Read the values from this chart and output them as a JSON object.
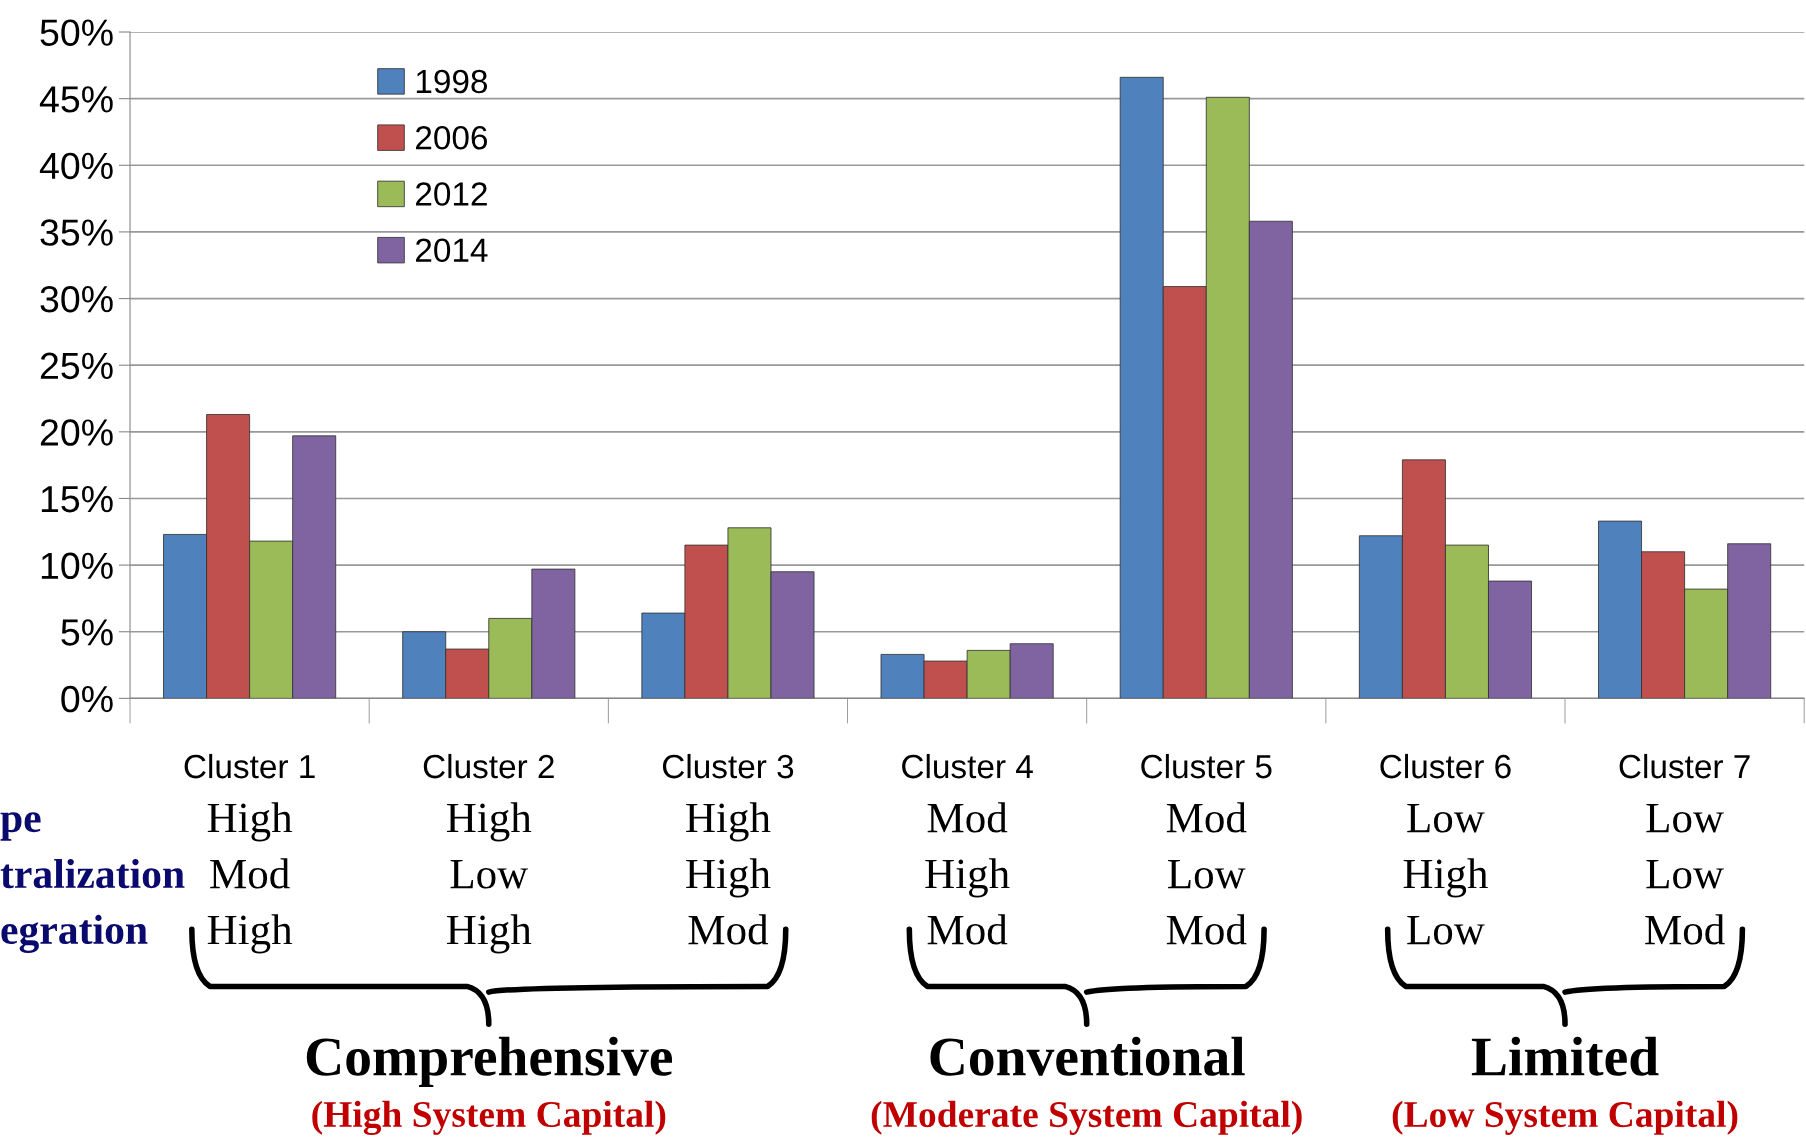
{
  "chart_data": {
    "type": "bar",
    "categories": [
      "Cluster 1",
      "Cluster 2",
      "Cluster 3",
      "Cluster 4",
      "Cluster 5",
      "Cluster 6",
      "Cluster 7"
    ],
    "series": [
      {
        "name": "1998",
        "color": "#4f81bd",
        "values": [
          12.3,
          5.0,
          6.4,
          3.3,
          46.6,
          12.2,
          13.3
        ]
      },
      {
        "name": "2006",
        "color": "#c0504d",
        "values": [
          21.3,
          3.7,
          11.5,
          2.8,
          30.9,
          17.9,
          11.0
        ]
      },
      {
        "name": "2012",
        "color": "#9bbb59",
        "values": [
          11.8,
          6.0,
          12.8,
          3.6,
          45.1,
          11.5,
          8.2
        ]
      },
      {
        "name": "2014",
        "color": "#8064a2",
        "values": [
          19.7,
          9.7,
          9.5,
          4.1,
          35.8,
          8.8,
          11.6
        ]
      }
    ],
    "ylim": [
      0,
      50
    ],
    "yticks": [
      {
        "value": 0,
        "label": "0%"
      },
      {
        "value": 5,
        "label": "5%"
      },
      {
        "value": 10,
        "label": "10%"
      },
      {
        "value": 15,
        "label": "15%"
      },
      {
        "value": 20,
        "label": "20%"
      },
      {
        "value": 25,
        "label": "25%"
      },
      {
        "value": 30,
        "label": "30%"
      },
      {
        "value": 35,
        "label": "35%"
      },
      {
        "value": 40,
        "label": "40%"
      },
      {
        "value": 45,
        "label": "45%"
      },
      {
        "value": 50,
        "label": "50%"
      }
    ],
    "grid": "y",
    "legend": "top left",
    "annotations": [
      "pe",
      "tralization",
      "egration",
      "High",
      "High",
      "High",
      "Mod",
      "Mod",
      "Low",
      "Low",
      "Mod",
      "Low",
      "High",
      "High",
      "Low",
      "High",
      "Low",
      "High",
      "High",
      "Mod",
      "Mod",
      "Mod",
      "Low",
      "Mod",
      "Comprehensive",
      "Conventional",
      "Limited",
      "(High System Capital)",
      "(Moderate System Capital)",
      "(Low System Capital)"
    ]
  }
}
